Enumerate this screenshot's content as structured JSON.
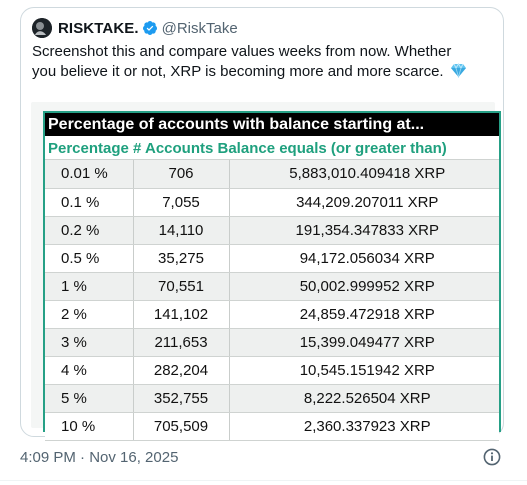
{
  "tweet": {
    "display_name": "RISKTAKE.",
    "handle": "@RiskTake",
    "text": "Screenshot this and compare values weeks from now. Whether you believe it or not, XRP is becoming more and more scarce.",
    "gem_icon": "gem-emoji"
  },
  "table": {
    "title": "Percentage of accounts with balance starting at...",
    "subtitle": "Percentage # Accounts Balance equals (or greater than)",
    "rows": [
      {
        "pct": "0.01 %",
        "count": "706",
        "balance": "5,883,010.409418 XRP"
      },
      {
        "pct": "0.1 %",
        "count": "7,055",
        "balance": "344,209.207011 XRP"
      },
      {
        "pct": "0.2 %",
        "count": "14,110",
        "balance": "191,354.347833 XRP"
      },
      {
        "pct": "0.5 %",
        "count": "35,275",
        "balance": "94,172.056034 XRP"
      },
      {
        "pct": "1 %",
        "count": "70,551",
        "balance": "50,002.999952 XRP"
      },
      {
        "pct": "2 %",
        "count": "141,102",
        "balance": "24,859.472918 XRP"
      },
      {
        "pct": "3 %",
        "count": "211,653",
        "balance": "15,399.049477 XRP"
      },
      {
        "pct": "4 %",
        "count": "282,204",
        "balance": "10,545.151942 XRP"
      },
      {
        "pct": "5 %",
        "count": "352,755",
        "balance": "8,222.526504 XRP"
      },
      {
        "pct": "10 %",
        "count": "705,509",
        "balance": "2,360.337923 XRP"
      }
    ],
    "accent_color": "#26a086"
  },
  "meta": {
    "timestamp": "4:09 PM · Nov 16, 2025"
  },
  "colors": {
    "verified": "#1d9bf0",
    "muted": "#536471"
  }
}
